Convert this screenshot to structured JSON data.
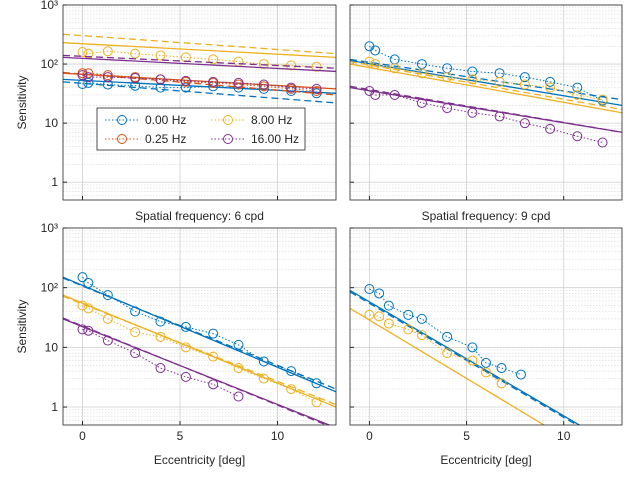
{
  "chart_data": [
    {
      "type": "line",
      "ylabel": "Sensitivity",
      "log_y": true,
      "grid": true,
      "legend": "center-left",
      "xlim": [
        -1,
        13
      ],
      "ylim": [
        0.5,
        1000
      ],
      "xticks": [
        0,
        5,
        10
      ],
      "yticks": [
        1,
        10,
        {
          "value": 100,
          "label": "10²"
        },
        {
          "value": 1000,
          "label": "10³"
        }
      ],
      "fit_x": [
        -1,
        13
      ],
      "series": [
        {
          "name": "0.00 Hz",
          "color": "#0072bd",
          "x": [
            0,
            0.3,
            1.3,
            2.7,
            4,
            5.3,
            6.7,
            8,
            9.3,
            10.7,
            12
          ],
          "values": [
            46,
            48,
            45,
            43,
            40,
            40,
            42,
            40,
            38,
            35,
            32
          ],
          "fit": [
            55,
            32
          ],
          "fit2": [
            50,
            22
          ]
        },
        {
          "name": "0.25 Hz",
          "color": "#d95319",
          "x": [
            0,
            0.3,
            1.3,
            2.7,
            4,
            5.3,
            6.7,
            8,
            9.3,
            10.7,
            12
          ],
          "values": [
            70,
            70,
            65,
            60,
            55,
            50,
            48,
            45,
            42,
            38,
            35
          ],
          "fit": [
            70,
            38
          ],
          "fit2": [
            72,
            30
          ]
        },
        {
          "name": "8.00 Hz",
          "color": "#edb120",
          "x": [
            0,
            0.3,
            1.3,
            2.7,
            4,
            5.3,
            6.7,
            8,
            9.3,
            10.7,
            12
          ],
          "values": [
            160,
            150,
            165,
            150,
            140,
            130,
            120,
            110,
            100,
            95,
            90
          ],
          "fit": [
            230,
            130
          ],
          "fit2": [
            320,
            150
          ]
        },
        {
          "name": "16.00 Hz",
          "color": "#7e2f8e",
          "x": [
            0,
            0.3,
            1.3,
            2.7,
            4,
            5.3,
            6.7,
            8,
            9.3,
            10.7,
            12
          ],
          "values": [
            65,
            60,
            60,
            58,
            55,
            52,
            50,
            48,
            45,
            40,
            38
          ],
          "fit": [
            130,
            75
          ],
          "fit2": [
            140,
            85
          ]
        }
      ]
    },
    {
      "type": "line",
      "log_y": true,
      "grid": true,
      "xlim": [
        -1,
        13
      ],
      "ylim": [
        0.5,
        1000
      ],
      "xticks": [
        0,
        5,
        10
      ],
      "yticks": [
        1,
        10,
        100,
        1000
      ],
      "fit_x": [
        -1,
        13
      ],
      "series": [
        {
          "color": "#0072bd",
          "x": [
            0,
            0.3,
            1.3,
            2.7,
            4,
            5.3,
            6.7,
            8,
            9.3,
            10.7,
            12
          ],
          "values": [
            200,
            170,
            120,
            100,
            85,
            75,
            70,
            60,
            50,
            40,
            24
          ],
          "fit": [
            115,
            20
          ],
          "fit2": [
            120,
            25
          ]
        },
        {
          "color": "#edb120",
          "x": [
            0,
            0.3,
            1.3,
            2.7,
            4,
            5.3,
            6.7,
            8,
            9.3,
            10.7,
            12
          ],
          "values": [
            110,
            100,
            85,
            70,
            60,
            55,
            50,
            45,
            40,
            30,
            25
          ],
          "fit": [
            100,
            15
          ],
          "fit2": [
            110,
            17
          ]
        },
        {
          "color": "#7e2f8e",
          "x": [
            0,
            0.3,
            1.3,
            2.7,
            4,
            5.3,
            6.7,
            8,
            9.3,
            10.7,
            12
          ],
          "values": [
            35,
            30,
            30,
            22,
            18,
            15,
            13,
            10,
            8,
            6,
            4.7
          ],
          "fit": [
            40,
            7
          ],
          "fit2": [
            42,
            7
          ]
        }
      ]
    },
    {
      "type": "line",
      "title": "Spatial frequency: 6 cpd",
      "xlabel": "Eccentricity [deg]",
      "ylabel": "Sensitivity",
      "log_y": true,
      "grid": true,
      "xlim": [
        -1,
        13
      ],
      "ylim": [
        0.5,
        1000
      ],
      "xticks": [
        0,
        5,
        10
      ],
      "yticks": [
        1,
        10,
        {
          "value": 100,
          "label": "10²"
        },
        {
          "value": 1000,
          "label": "10³"
        }
      ],
      "fit_x": [
        -1,
        13
      ],
      "series": [
        {
          "color": "#0072bd",
          "x": [
            0,
            0.3,
            1.3,
            2.7,
            4,
            5.3,
            6.7,
            8,
            9.3,
            10.7,
            12
          ],
          "values": [
            150,
            120,
            75,
            40,
            27,
            22,
            17,
            11,
            5.8,
            4,
            2.5
          ],
          "fit": [
            150,
            1.8
          ],
          "fit2": [
            145,
            2
          ]
        },
        {
          "color": "#edb120",
          "x": [
            0,
            0.3,
            1.3,
            2.7,
            4,
            5.3,
            6.7,
            8,
            9.3,
            10.7,
            12
          ],
          "values": [
            50,
            45,
            30,
            18,
            15,
            10,
            7,
            4.5,
            3,
            2,
            1.2
          ],
          "fit": [
            75,
            1
          ],
          "fit2": [
            72,
            1.1
          ]
        },
        {
          "color": "#7e2f8e",
          "x": [
            0,
            0.3,
            1.3,
            2.7,
            4,
            5.3,
            6.7,
            8
          ],
          "values": [
            20,
            19,
            13,
            8,
            4.5,
            3.2,
            2.4,
            1.5
          ],
          "fit": [
            30,
            0.45
          ],
          "fit2": [
            31,
            0.43
          ]
        }
      ]
    },
    {
      "type": "line",
      "title": "Spatial frequency: 9 cpd",
      "xlabel": "Eccentricity [deg]",
      "log_y": true,
      "grid": true,
      "xlim": [
        -1,
        13
      ],
      "ylim": [
        0.5,
        1000
      ],
      "xticks": [
        0,
        5,
        10
      ],
      "yticks": [
        1,
        10,
        100,
        1000
      ],
      "fit_x": [
        -1,
        13
      ],
      "series": [
        {
          "color": "#0072bd",
          "x": [
            0,
            0.5,
            1,
            2,
            2.7,
            4,
            5.3,
            6,
            6.8,
            7.8
          ],
          "values": [
            95,
            80,
            50,
            35,
            30,
            15,
            10,
            5.5,
            4.5,
            3.5
          ],
          "fit": [
            90,
            0.19
          ],
          "fit2": [
            85,
            0.18
          ]
        },
        {
          "color": "#edb120",
          "x": [
            0,
            0.5,
            1,
            2,
            2.7,
            4,
            5.3,
            6,
            6.8
          ],
          "values": [
            35,
            33,
            25,
            20,
            16,
            8,
            6,
            3.8,
            2.5
          ],
          "fit": [
            45,
            0.082
          ]
        }
      ]
    }
  ]
}
